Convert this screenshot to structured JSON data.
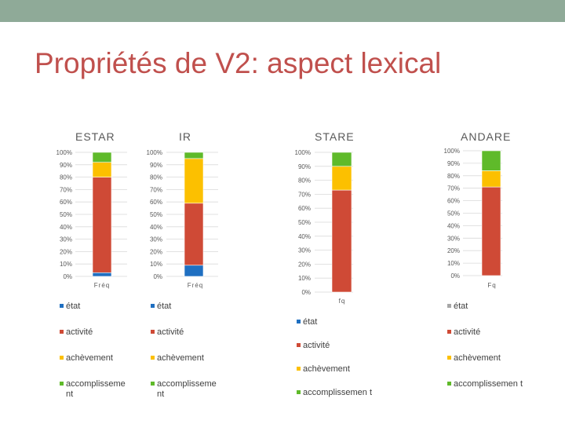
{
  "slide": {
    "title": "Propriétés de V2: aspect lexical"
  },
  "chart_data": [
    {
      "type": "bar",
      "stacked": "percent",
      "title": "ESTAR",
      "categories": [
        "Fréq"
      ],
      "ylim": [
        0,
        100
      ],
      "yticks": [
        "0%",
        "10%",
        "20%",
        "30%",
        "40%",
        "50%",
        "60%",
        "70%",
        "80%",
        "90%",
        "100%"
      ],
      "series": [
        {
          "name": "état",
          "values": [
            3
          ]
        },
        {
          "name": "activité",
          "values": [
            77
          ]
        },
        {
          "name": "achèvement",
          "values": [
            12
          ]
        },
        {
          "name": "accomplisseme nt",
          "values": [
            8
          ]
        }
      ],
      "legend": "below"
    },
    {
      "type": "bar",
      "stacked": "percent",
      "title": "IR",
      "categories": [
        "Fréq"
      ],
      "ylim": [
        0,
        100
      ],
      "yticks": [
        "0%",
        "10%",
        "20%",
        "30%",
        "40%",
        "50%",
        "60%",
        "70%",
        "80%",
        "90%",
        "100%"
      ],
      "series": [
        {
          "name": "état",
          "values": [
            9
          ]
        },
        {
          "name": "activité",
          "values": [
            50
          ]
        },
        {
          "name": "achèvement",
          "values": [
            36
          ]
        },
        {
          "name": "accomplisseme nt",
          "values": [
            5
          ]
        }
      ],
      "legend": "below"
    },
    {
      "type": "bar",
      "stacked": "percent",
      "title": "STARE",
      "categories": [
        "fq"
      ],
      "ylim": [
        0,
        100
      ],
      "yticks": [
        "0%",
        "10%",
        "20%",
        "30%",
        "40%",
        "50%",
        "60%",
        "70%",
        "80%",
        "90%",
        "100%"
      ],
      "series": [
        {
          "name": "état",
          "values": [
            0
          ]
        },
        {
          "name": "activité",
          "values": [
            73
          ]
        },
        {
          "name": "achèvement",
          "values": [
            17
          ]
        },
        {
          "name": "accomplissemen t",
          "values": [
            10
          ]
        }
      ],
      "legend": "below"
    },
    {
      "type": "bar",
      "stacked": "percent",
      "title": "ANDARE",
      "categories": [
        "Fq"
      ],
      "ylim": [
        0,
        100
      ],
      "yticks": [
        "0%",
        "10%",
        "20%",
        "30%",
        "40%",
        "50%",
        "60%",
        "70%",
        "80%",
        "90%",
        "100%"
      ],
      "series": [
        {
          "name": "état",
          "values": [
            0
          ]
        },
        {
          "name": "activité",
          "values": [
            71
          ]
        },
        {
          "name": "achèvement",
          "values": [
            13
          ]
        },
        {
          "name": "accomplissemen t",
          "values": [
            16
          ]
        }
      ],
      "legend": "below"
    }
  ],
  "colors": {
    "état": "#1f6fc1",
    "activité": "#cf4a36",
    "achèvement": "#fcc000",
    "accomplissement": "#5fba2a",
    "état_andare": "#a6a6a6",
    "accomplissement_stare": "#5fba2a",
    "gridline": "#d9d9d9",
    "axis_text": "#595959"
  }
}
